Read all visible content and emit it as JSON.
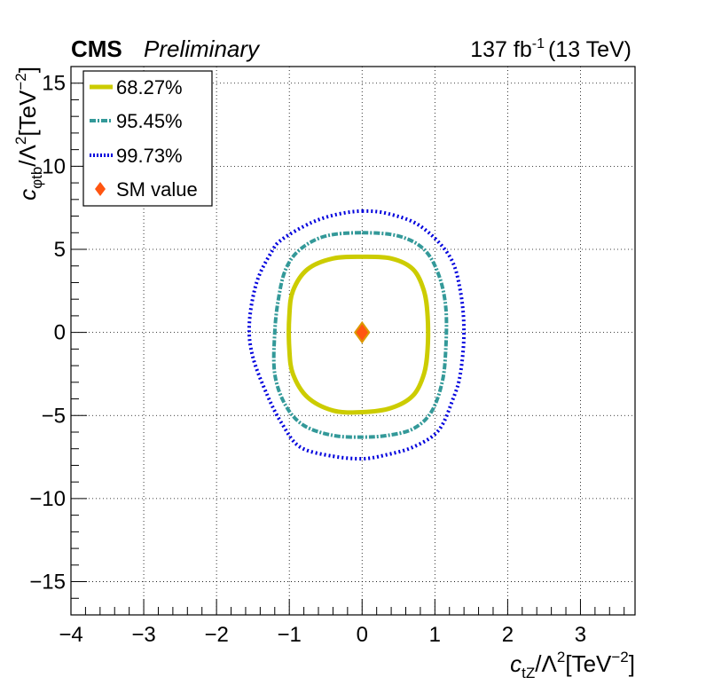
{
  "header": {
    "experiment": "CMS",
    "status": "Preliminary",
    "lumi_value": "137 fb",
    "lumi_exp": "-1",
    "energy": "(13 TeV)"
  },
  "axes": {
    "x": {
      "symbol": "c",
      "sub": "tZ",
      "mid": "/Λ",
      "sup": "2",
      "unit_open": "[TeV",
      "unit_sup": "−2",
      "unit_close": "]"
    },
    "y": {
      "symbol": "c",
      "sub": "φtb",
      "mid": "/Λ",
      "sup": "2",
      "unit_open": "[TeV",
      "unit_sup": "−2",
      "unit_close": "]"
    }
  },
  "legend": [
    {
      "label": "68.27%",
      "color": "#cccc00",
      "style": "thick-solid"
    },
    {
      "label": "95.45%",
      "color": "#339999",
      "style": "dash-dot"
    },
    {
      "label": "99.73%",
      "color": "#0000dd",
      "style": "dotted"
    },
    {
      "label": "SM value",
      "color": "#ff5511",
      "style": "diamond"
    }
  ],
  "chart_data": {
    "type": "scatter",
    "xlim": [
      -4,
      3.75
    ],
    "ylim": [
      -17,
      16
    ],
    "x_ticks": [
      -4,
      -3,
      -2,
      -1,
      0,
      1,
      2,
      3
    ],
    "y_ticks": [
      -15,
      -10,
      -5,
      0,
      5,
      10,
      15
    ],
    "grid": true,
    "legend_position": "top-left",
    "series": [
      {
        "name": "68.27%",
        "color": "#cccc00",
        "points": [
          [
            0,
            4.55
          ],
          [
            0.4,
            4.45
          ],
          [
            0.7,
            3.8
          ],
          [
            0.85,
            2.5
          ],
          [
            0.9,
            1.0
          ],
          [
            0.9,
            -1.0
          ],
          [
            0.85,
            -2.5
          ],
          [
            0.7,
            -3.8
          ],
          [
            0.4,
            -4.55
          ],
          [
            0,
            -4.8
          ],
          [
            -0.4,
            -4.7
          ],
          [
            -0.75,
            -3.9
          ],
          [
            -0.95,
            -2.5
          ],
          [
            -1.0,
            -1.0
          ],
          [
            -1.0,
            1.0
          ],
          [
            -0.95,
            2.5
          ],
          [
            -0.75,
            3.8
          ],
          [
            -0.4,
            4.45
          ],
          [
            0,
            4.55
          ]
        ]
      },
      {
        "name": "95.45%",
        "color": "#339999",
        "points": [
          [
            0,
            6.0
          ],
          [
            0.5,
            5.8
          ],
          [
            0.85,
            5.0
          ],
          [
            1.05,
            3.5
          ],
          [
            1.15,
            1.5
          ],
          [
            1.15,
            -1.0
          ],
          [
            1.1,
            -3.0
          ],
          [
            0.95,
            -4.8
          ],
          [
            0.7,
            -5.8
          ],
          [
            0.35,
            -6.2
          ],
          [
            0,
            -6.3
          ],
          [
            -0.4,
            -6.2
          ],
          [
            -0.8,
            -5.6
          ],
          [
            -1.05,
            -4.4
          ],
          [
            -1.2,
            -2.5
          ],
          [
            -1.2,
            0
          ],
          [
            -1.15,
            2.0
          ],
          [
            -1.05,
            3.8
          ],
          [
            -0.85,
            5.0
          ],
          [
            -0.5,
            5.8
          ],
          [
            0,
            6.0
          ]
        ]
      },
      {
        "name": "99.73%",
        "color": "#0000dd",
        "points": [
          [
            0,
            7.3
          ],
          [
            0.35,
            7.15
          ],
          [
            0.8,
            6.4
          ],
          [
            1.2,
            4.6
          ],
          [
            1.35,
            2.5
          ],
          [
            1.4,
            0
          ],
          [
            1.35,
            -2.5
          ],
          [
            1.25,
            -4.0
          ],
          [
            1.05,
            -5.9
          ],
          [
            0.7,
            -6.9
          ],
          [
            0.3,
            -7.4
          ],
          [
            0,
            -7.6
          ],
          [
            -0.4,
            -7.45
          ],
          [
            -0.85,
            -6.9
          ],
          [
            -1.1,
            -5.5
          ],
          [
            -1.3,
            -3.8
          ],
          [
            -1.5,
            -1.5
          ],
          [
            -1.55,
            0.5
          ],
          [
            -1.45,
            3.0
          ],
          [
            -1.25,
            4.8
          ],
          [
            -1.1,
            5.6
          ],
          [
            -0.7,
            6.6
          ],
          [
            -0.35,
            7.1
          ],
          [
            0,
            7.3
          ]
        ]
      }
    ],
    "sm_value": {
      "x": 0,
      "y": 0,
      "label": "SM value",
      "fill": "#ff5511",
      "edge": "#dd9900"
    }
  }
}
